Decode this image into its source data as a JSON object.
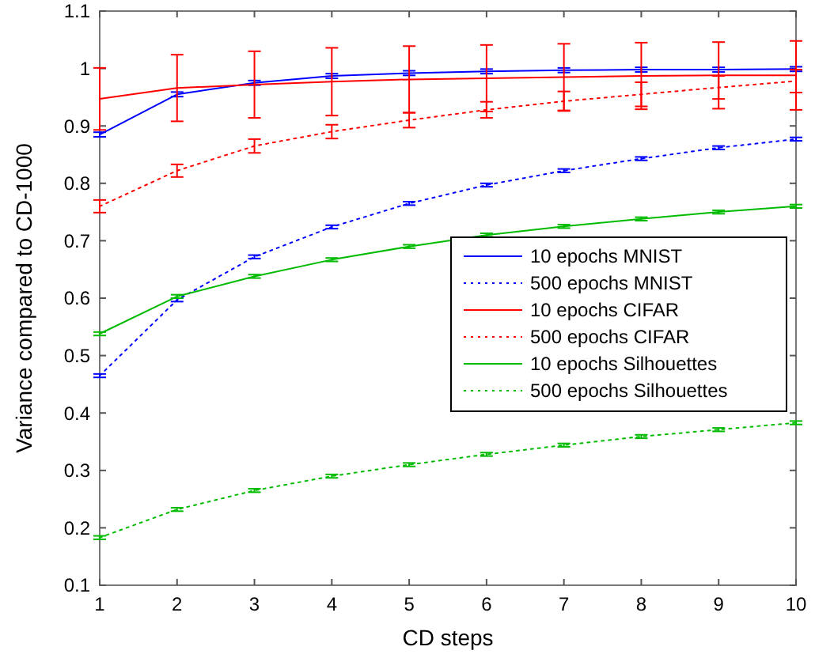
{
  "chart_data": {
    "type": "line",
    "xlabel": "CD steps",
    "ylabel": "Variance compared to CD-1000",
    "x": [
      1,
      2,
      3,
      4,
      5,
      6,
      7,
      8,
      9,
      10
    ],
    "xlim": [
      1,
      10
    ],
    "xticks": [
      1,
      2,
      3,
      4,
      5,
      6,
      7,
      8,
      9,
      10
    ],
    "ylim": [
      0.1,
      1.1
    ],
    "yticks": [
      0.1,
      0.2,
      0.3,
      0.4,
      0.5,
      0.6,
      0.7,
      0.8,
      0.9,
      1,
      1.1
    ],
    "legend": "right",
    "marker": "none",
    "grid": false,
    "series": [
      {
        "name": "10 epochs MNIST",
        "color": "#0000ff",
        "line_style": "solid",
        "values": [
          0.885,
          0.955,
          0.975,
          0.987,
          0.992,
          0.995,
          0.997,
          0.998,
          0.998,
          0.999
        ],
        "errors": [
          0.004,
          0.004,
          0.004,
          0.004,
          0.004,
          0.004,
          0.004,
          0.004,
          0.004,
          0.004
        ]
      },
      {
        "name": "500 epochs MNIST",
        "color": "#0000ff",
        "line_style": "dotted",
        "values": [
          0.465,
          0.597,
          0.672,
          0.724,
          0.765,
          0.797,
          0.822,
          0.843,
          0.862,
          0.877
        ],
        "errors": [
          0.003,
          0.003,
          0.003,
          0.003,
          0.003,
          0.003,
          0.003,
          0.003,
          0.003,
          0.003
        ]
      },
      {
        "name": "10 epochs CIFAR",
        "color": "#ff0000",
        "line_style": "solid",
        "values": [
          0.947,
          0.966,
          0.972,
          0.977,
          0.981,
          0.983,
          0.985,
          0.987,
          0.988,
          0.988
        ],
        "errors": [
          0.054,
          0.058,
          0.058,
          0.059,
          0.058,
          0.058,
          0.058,
          0.058,
          0.058,
          0.06
        ]
      },
      {
        "name": "500 epochs CIFAR",
        "color": "#ff0000",
        "line_style": "dotted",
        "values": [
          0.76,
          0.822,
          0.865,
          0.89,
          0.91,
          0.928,
          0.943,
          0.955,
          0.967,
          0.978
        ],
        "errors": [
          0.011,
          0.011,
          0.012,
          0.012,
          0.013,
          0.014,
          0.017,
          0.021,
          0.02,
          0.02
        ]
      },
      {
        "name": "10 epochs Silhouettes",
        "color": "#00bb00",
        "line_style": "solid",
        "values": [
          0.538,
          0.603,
          0.638,
          0.667,
          0.69,
          0.71,
          0.725,
          0.738,
          0.75,
          0.76
        ],
        "errors": [
          0.003,
          0.003,
          0.003,
          0.003,
          0.003,
          0.003,
          0.003,
          0.003,
          0.003,
          0.003
        ]
      },
      {
        "name": "500 epochs Silhouettes",
        "color": "#00bb00",
        "line_style": "dotted",
        "values": [
          0.183,
          0.232,
          0.265,
          0.29,
          0.31,
          0.328,
          0.344,
          0.359,
          0.371,
          0.383
        ],
        "errors": [
          0.003,
          0.003,
          0.003,
          0.003,
          0.003,
          0.003,
          0.003,
          0.003,
          0.003,
          0.003
        ]
      }
    ]
  }
}
